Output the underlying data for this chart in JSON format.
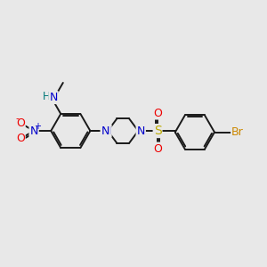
{
  "background_color": "#e8e8e8",
  "bond_color": "#1a1a1a",
  "atom_colors": {
    "N": "#0000cc",
    "O": "#ee0000",
    "S": "#bbaa00",
    "Br": "#cc8800",
    "H": "#007777",
    "C": "#1a1a1a"
  },
  "figsize": [
    3.0,
    3.0
  ],
  "dpi": 100,
  "xlim": [
    0,
    10
  ],
  "ylim": [
    0,
    10
  ]
}
